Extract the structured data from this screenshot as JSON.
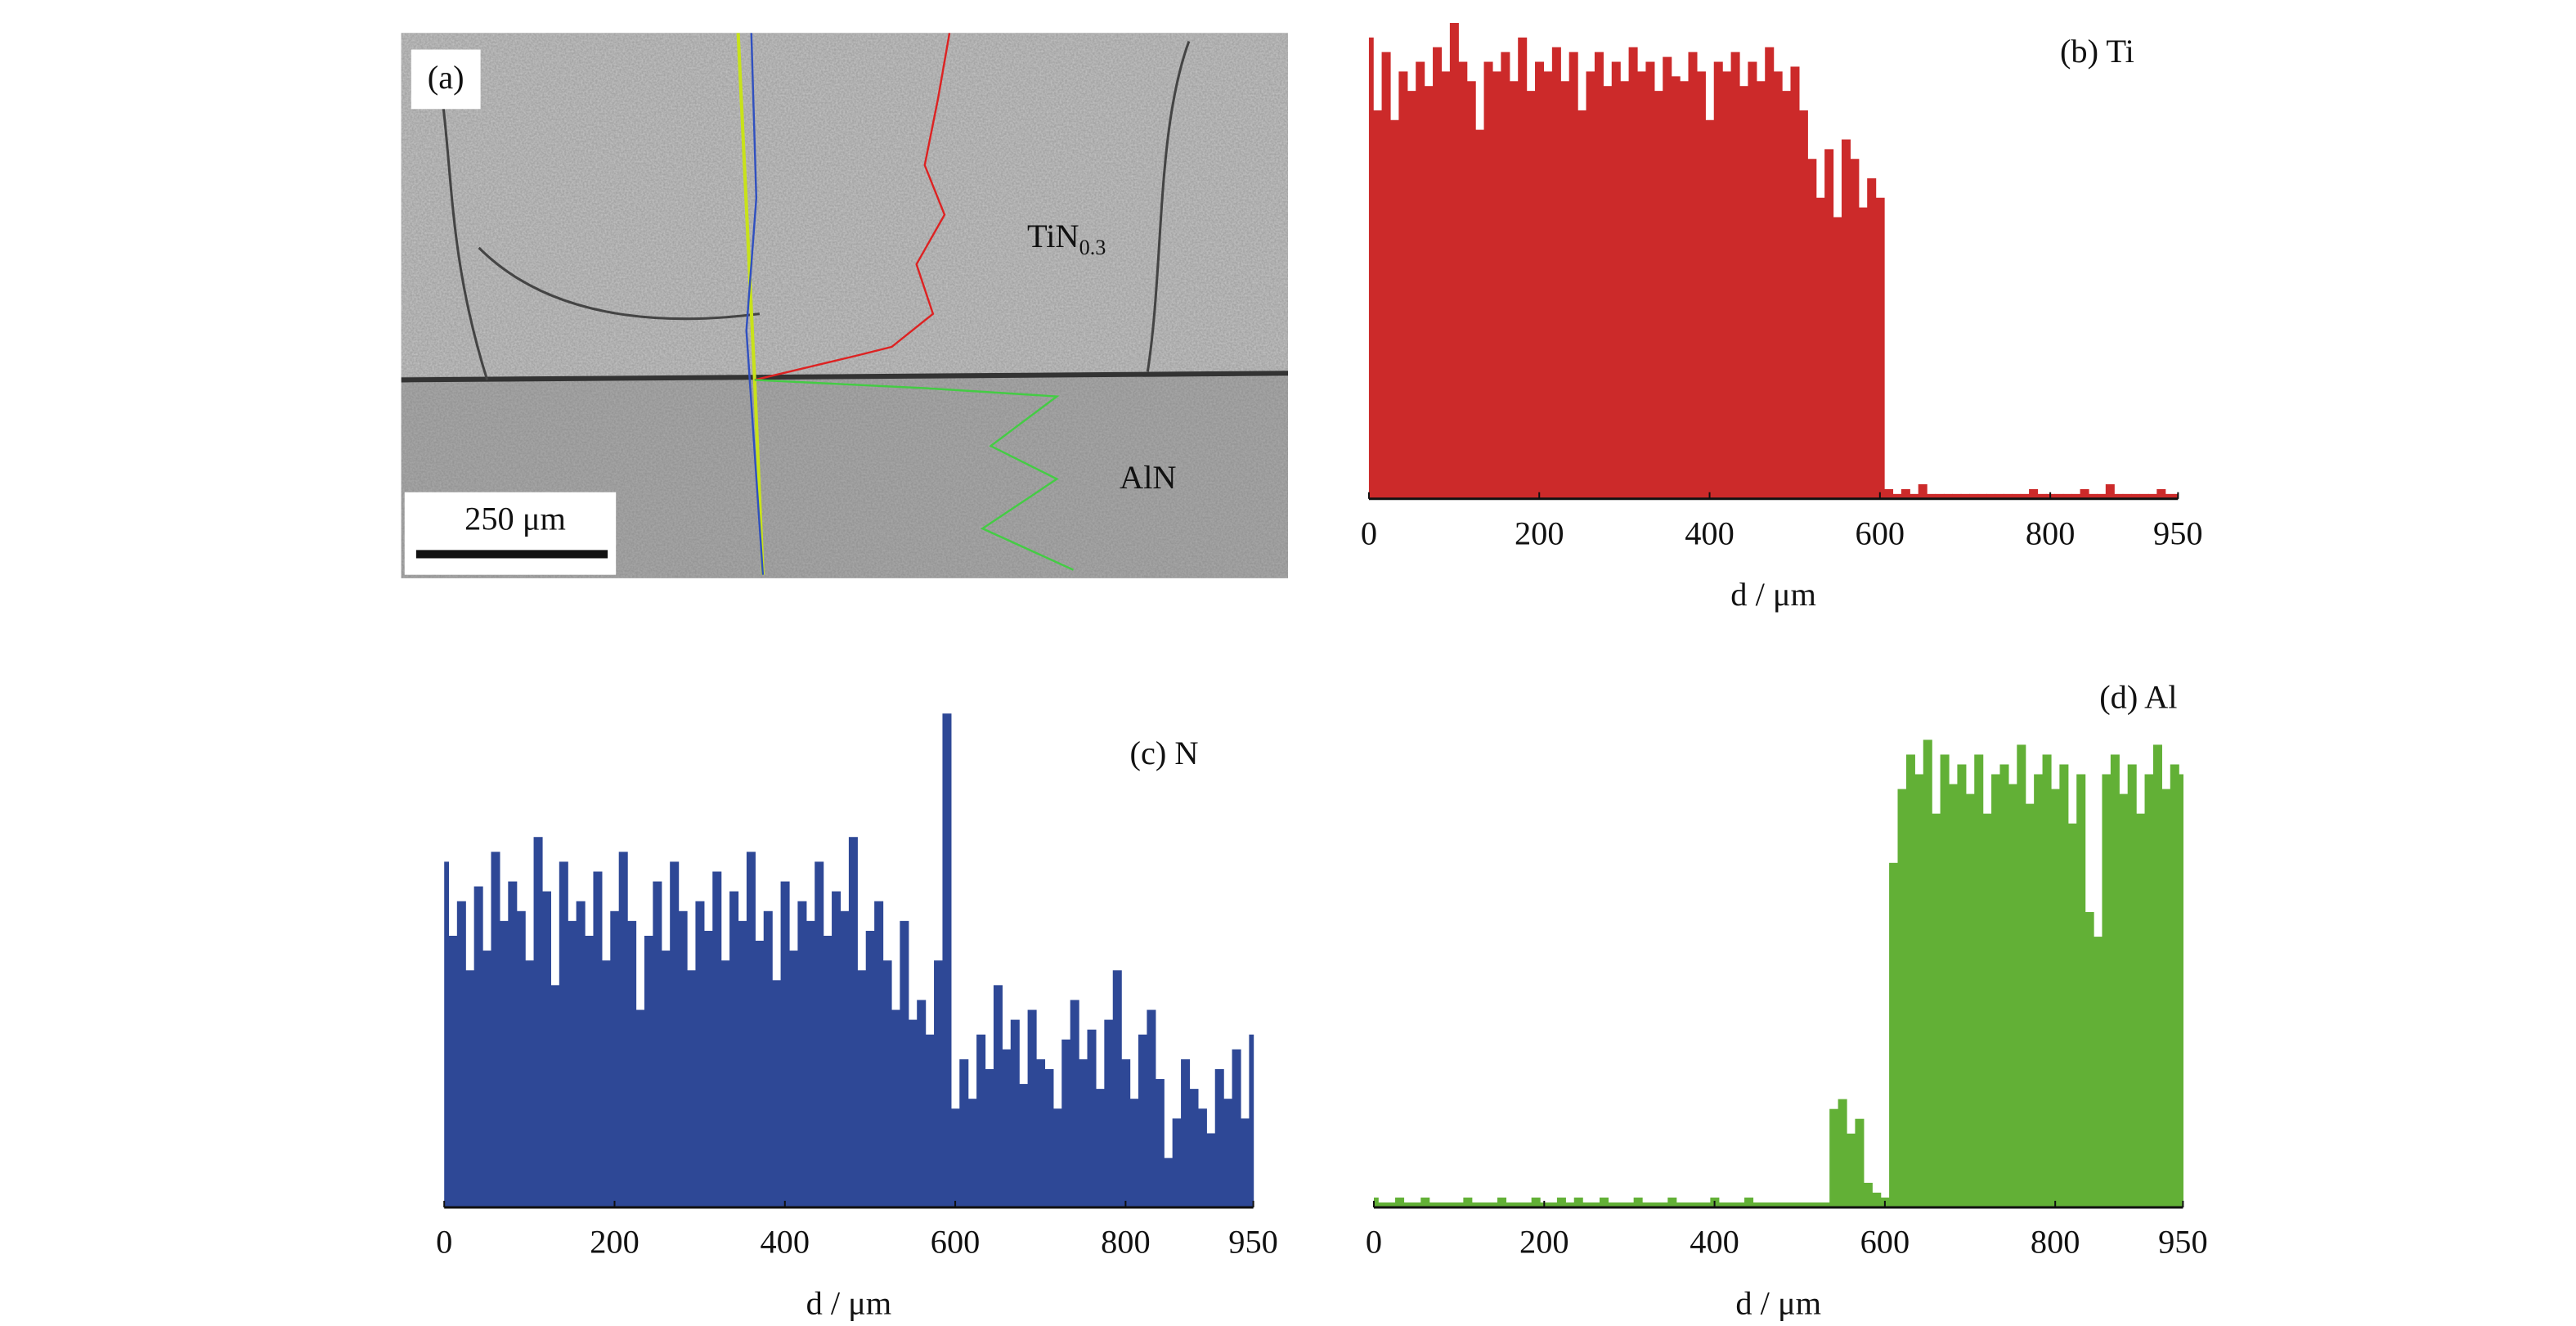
{
  "image": {
    "label": "(a)",
    "region_top": "TiN",
    "region_top_sub": "0.3",
    "region_bottom": "AlN",
    "scale_bar": "250 μm"
  },
  "chart_data": [
    {
      "type": "bar",
      "title": "(b) Ti",
      "color": "#cc2a2a",
      "xlabel": "d / μm",
      "xlim": [
        0,
        950
      ],
      "xticks": [
        0,
        200,
        400,
        600,
        800,
        950
      ],
      "ylim": [
        0,
        100
      ],
      "x": [
        0,
        10,
        20,
        30,
        40,
        50,
        60,
        70,
        80,
        90,
        100,
        110,
        120,
        130,
        140,
        150,
        160,
        170,
        180,
        190,
        200,
        210,
        220,
        230,
        240,
        250,
        260,
        270,
        280,
        290,
        300,
        310,
        320,
        330,
        340,
        350,
        360,
        370,
        380,
        390,
        400,
        410,
        420,
        430,
        440,
        450,
        460,
        470,
        480,
        490,
        500,
        510,
        520,
        530,
        540,
        550,
        560,
        570,
        580,
        590,
        600,
        610,
        620,
        630,
        640,
        650,
        660,
        670,
        680,
        690,
        700,
        710,
        720,
        730,
        740,
        750,
        760,
        770,
        780,
        790,
        800,
        810,
        820,
        830,
        840,
        850,
        860,
        870,
        880,
        890,
        900,
        910,
        920,
        930,
        940,
        950
      ],
      "values": [
        95,
        80,
        92,
        78,
        88,
        84,
        90,
        85,
        93,
        88,
        98,
        90,
        86,
        76,
        90,
        88,
        92,
        86,
        95,
        84,
        90,
        88,
        93,
        86,
        92,
        80,
        88,
        92,
        85,
        90,
        86,
        93,
        88,
        90,
        84,
        91,
        87,
        86,
        92,
        88,
        78,
        90,
        88,
        92,
        85,
        90,
        86,
        93,
        88,
        84,
        89,
        80,
        70,
        62,
        72,
        58,
        74,
        70,
        60,
        66,
        62,
        2,
        1,
        2,
        1,
        3,
        1,
        1,
        1,
        1,
        1,
        1,
        1,
        1,
        1,
        1,
        1,
        1,
        2,
        1,
        1,
        1,
        1,
        1,
        2,
        1,
        1,
        3,
        1,
        1,
        1,
        1,
        1,
        2,
        1,
        1
      ]
    },
    {
      "type": "bar",
      "title": "(c) N",
      "color": "#2e4896",
      "xlabel": "d / μm",
      "xlim": [
        0,
        950
      ],
      "xticks": [
        0,
        200,
        400,
        600,
        800,
        950
      ],
      "ylim": [
        0,
        100
      ],
      "x": [
        0,
        10,
        20,
        30,
        40,
        50,
        60,
        70,
        80,
        90,
        100,
        110,
        120,
        130,
        140,
        150,
        160,
        170,
        180,
        190,
        200,
        210,
        220,
        230,
        240,
        250,
        260,
        270,
        280,
        290,
        300,
        310,
        320,
        330,
        340,
        350,
        360,
        370,
        380,
        390,
        400,
        410,
        420,
        430,
        440,
        450,
        460,
        470,
        480,
        490,
        500,
        510,
        520,
        530,
        540,
        550,
        560,
        570,
        580,
        590,
        600,
        610,
        620,
        630,
        640,
        650,
        660,
        670,
        680,
        690,
        700,
        710,
        720,
        730,
        740,
        750,
        760,
        770,
        780,
        790,
        800,
        810,
        820,
        830,
        840,
        850,
        860,
        870,
        880,
        890,
        900,
        910,
        920,
        930,
        940,
        950
      ],
      "values": [
        70,
        55,
        62,
        48,
        65,
        52,
        72,
        58,
        66,
        60,
        50,
        75,
        64,
        45,
        70,
        58,
        62,
        55,
        68,
        50,
        60,
        72,
        58,
        40,
        55,
        66,
        52,
        70,
        60,
        48,
        62,
        56,
        68,
        50,
        64,
        58,
        72,
        54,
        60,
        46,
        66,
        52,
        62,
        58,
        70,
        55,
        64,
        60,
        75,
        48,
        56,
        62,
        50,
        40,
        58,
        38,
        42,
        35,
        50,
        100,
        20,
        30,
        22,
        35,
        28,
        45,
        32,
        38,
        25,
        40,
        30,
        28,
        20,
        34,
        42,
        30,
        36,
        24,
        38,
        48,
        30,
        22,
        35,
        40,
        26,
        10,
        18,
        30,
        24,
        20,
        15,
        28,
        22,
        32,
        18,
        35
      ]
    },
    {
      "type": "bar",
      "title": "(d) Al",
      "color": "#62b036",
      "xlabel": "d / μm",
      "xlim": [
        0,
        950
      ],
      "xticks": [
        0,
        200,
        400,
        600,
        800,
        950
      ],
      "ylim": [
        0,
        100
      ],
      "x": [
        0,
        10,
        20,
        30,
        40,
        50,
        60,
        70,
        80,
        90,
        100,
        110,
        120,
        130,
        140,
        150,
        160,
        170,
        180,
        190,
        200,
        210,
        220,
        230,
        240,
        250,
        260,
        270,
        280,
        290,
        300,
        310,
        320,
        330,
        340,
        350,
        360,
        370,
        380,
        390,
        400,
        410,
        420,
        430,
        440,
        450,
        460,
        470,
        480,
        490,
        500,
        510,
        520,
        530,
        540,
        550,
        560,
        570,
        580,
        590,
        600,
        610,
        620,
        630,
        640,
        650,
        660,
        670,
        680,
        690,
        700,
        710,
        720,
        730,
        740,
        750,
        760,
        770,
        780,
        790,
        800,
        810,
        820,
        830,
        840,
        850,
        860,
        870,
        880,
        890,
        900,
        910,
        920,
        930,
        940,
        950
      ],
      "values": [
        2,
        1,
        1,
        2,
        1,
        1,
        2,
        1,
        1,
        1,
        1,
        2,
        1,
        1,
        1,
        2,
        1,
        1,
        1,
        2,
        1,
        1,
        2,
        1,
        2,
        1,
        1,
        2,
        1,
        1,
        1,
        2,
        1,
        1,
        1,
        2,
        1,
        1,
        1,
        1,
        2,
        1,
        1,
        1,
        2,
        1,
        1,
        1,
        1,
        1,
        1,
        1,
        1,
        1,
        20,
        22,
        15,
        18,
        5,
        3,
        2,
        70,
        85,
        92,
        88,
        95,
        80,
        92,
        86,
        90,
        84,
        92,
        80,
        88,
        90,
        86,
        94,
        82,
        88,
        92,
        85,
        90,
        78,
        88,
        60,
        55,
        88,
        92,
        84,
        90,
        80,
        88,
        94,
        85,
        90,
        88
      ]
    }
  ]
}
